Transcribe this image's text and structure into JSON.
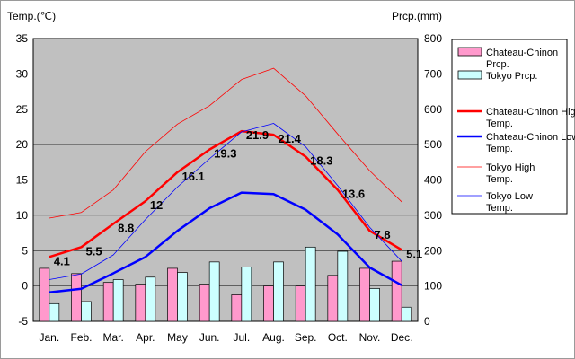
{
  "chart_data": {
    "type": "bar+line",
    "left_axis_label": "Temp.(℃)",
    "right_axis_label": "Prcp.(mm)",
    "ylim_temp": [
      -5,
      35
    ],
    "ylim_prcp": [
      0,
      800
    ],
    "yticks_temp": [
      "-5",
      "0",
      "5",
      "10",
      "15",
      "20",
      "25",
      "30",
      "35"
    ],
    "yticks_prcp": [
      "0",
      "100",
      "200",
      "300",
      "400",
      "500",
      "600",
      "700",
      "800"
    ],
    "categories": [
      "Jan.",
      "Feb.",
      "Mar.",
      "Apr.",
      "May",
      "Jun.",
      "Jul.",
      "Aug.",
      "Sep.",
      "Oct.",
      "Nov.",
      "Dec."
    ],
    "grid": true,
    "legend_position": "right",
    "bar_series": [
      {
        "name": "Chateau-Chinon Prcp.",
        "fill": "#ff99cc",
        "values": [
          150,
          135,
          110,
          105,
          150,
          105,
          75,
          100,
          100,
          130,
          150,
          170
        ]
      },
      {
        "name": "Tokyo Prcp.",
        "fill": "#ccffff",
        "values": [
          50,
          56,
          118,
          125,
          138,
          168,
          154,
          168,
          210,
          198,
          93,
          40
        ]
      }
    ],
    "line_series": [
      {
        "name": "Chateau-Chinon High Temp.",
        "color": "#ff0000",
        "width": 2.5,
        "values": [
          4.1,
          5.5,
          8.8,
          12,
          16.1,
          19.3,
          21.9,
          21.4,
          18.3,
          13.6,
          7.8,
          5.1
        ]
      },
      {
        "name": "Chateau-Chinon Low Temp.",
        "color": "#0000ff",
        "width": 2.5,
        "values": [
          -0.9,
          -0.4,
          1.8,
          4.1,
          7.8,
          11,
          13.2,
          13,
          10.8,
          7.3,
          2.6,
          0.1
        ]
      },
      {
        "name": "Tokyo High Temp.",
        "color": "#ff0000",
        "width": 0.8,
        "values": [
          9.6,
          10.4,
          13.6,
          19,
          22.9,
          25.5,
          29.2,
          30.8,
          26.9,
          21.5,
          16.3,
          11.9
        ]
      },
      {
        "name": "Tokyo Low Temp.",
        "color": "#0000ff",
        "width": 0.8,
        "values": [
          0.9,
          1.7,
          4.4,
          9.4,
          14,
          18,
          21.8,
          23,
          19.7,
          14.2,
          8.3,
          3.5
        ]
      }
    ],
    "data_labels": {
      "series": "Chateau-Chinon High Temp.",
      "values": [
        "4.1",
        "5.5",
        "8.8",
        "12",
        "16.1",
        "19.3",
        "21.9",
        "21.4",
        "18.3",
        "13.6",
        "7.8",
        "5.1"
      ]
    }
  },
  "colors": {
    "plot_bg": "#c0c0c0",
    "grid": "#000000"
  }
}
